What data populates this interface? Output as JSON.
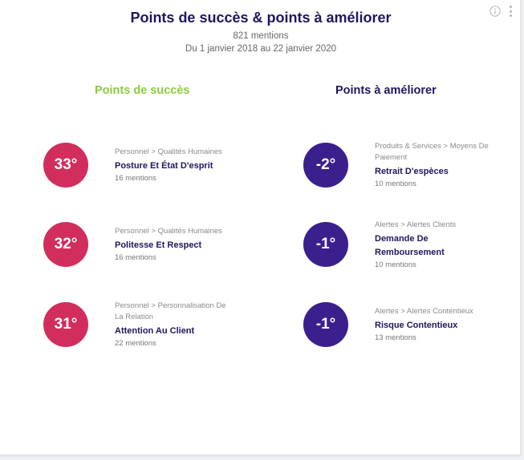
{
  "header": {
    "title": "Points de succès & points à améliorer",
    "mentions": "821 mentions",
    "period": "Du 1 janvier 2018 au 22 janvier 2020"
  },
  "icons": {
    "info": "info-icon",
    "menu": "more-vertical-icon"
  },
  "colors": {
    "success": "#8ccb3d",
    "positive_badge": "#d12e5d",
    "negative_badge": "#3b1f8d",
    "title": "#1f1760"
  },
  "columns": {
    "success": {
      "title": "Points de succès",
      "items": [
        {
          "score": "33°",
          "category": "Personnel > Qualités Humaines",
          "name": "Posture Et État D'esprit",
          "mentions": "16 mentions"
        },
        {
          "score": "32°",
          "category": "Personnel > Qualités Humaines",
          "name": "Politesse Et Respect",
          "mentions": "16 mentions"
        },
        {
          "score": "31°",
          "category": "Personnel > Personnalisation De La Relation",
          "name": "Attention Au Client",
          "mentions": "22 mentions"
        }
      ]
    },
    "improve": {
      "title": "Points à améliorer",
      "items": [
        {
          "score": "-2°",
          "category": "Produits & Services > Moyens De Paiement",
          "name": "Retrait D'espèces",
          "mentions": "10 mentions"
        },
        {
          "score": "-1°",
          "category": "Alertes > Alertes Clients",
          "name": "Demande De Remboursement",
          "mentions": "10 mentions"
        },
        {
          "score": "-1°",
          "category": "Alertes > Alertes Contentieux",
          "name": "Risque Contentieux",
          "mentions": "13 mentions"
        }
      ]
    }
  }
}
